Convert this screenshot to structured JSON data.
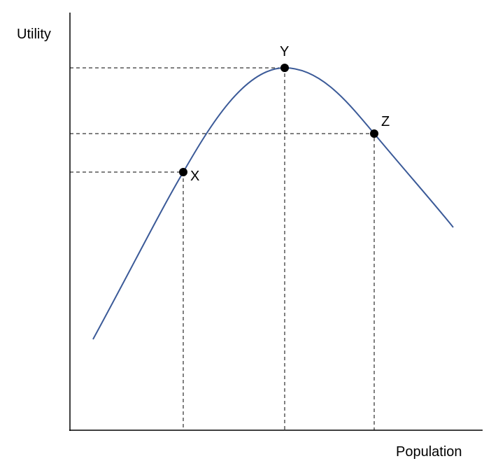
{
  "axes": {
    "y_label": "Utility",
    "x_label": "Population"
  },
  "points": [
    {
      "label": "X"
    },
    {
      "label": "Y"
    },
    {
      "label": "Z"
    }
  ]
}
